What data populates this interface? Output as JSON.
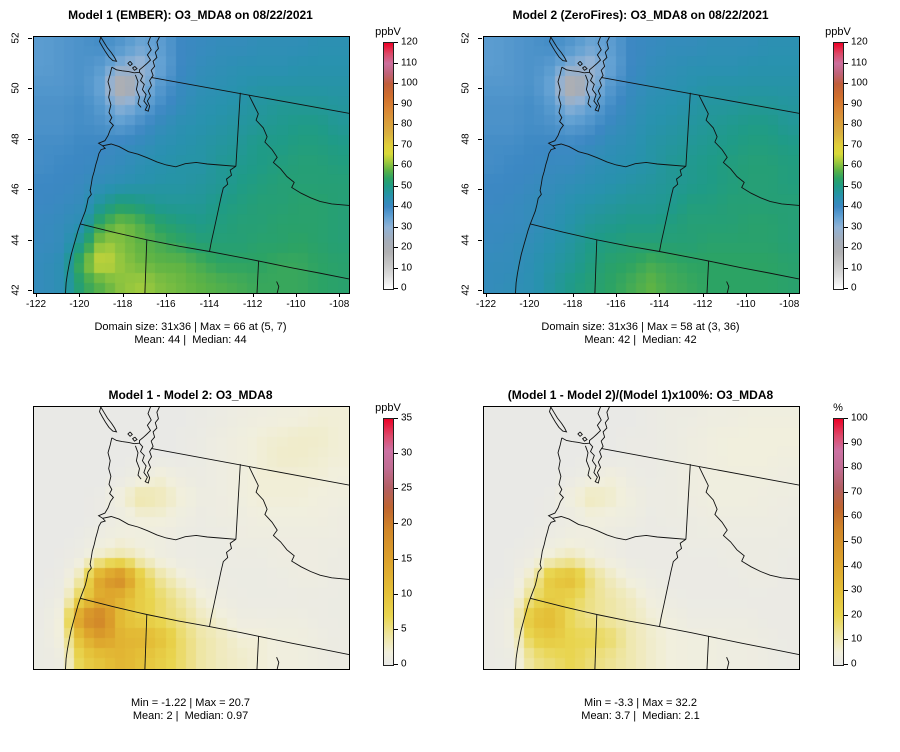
{
  "figure": {
    "background": "#ffffff",
    "pollutant": "O3_MDA8",
    "date": "08/22/2021"
  },
  "colormaps": {
    "conc": {
      "domain": "absolute",
      "stops": [
        [
          0,
          "#ffffff"
        ],
        [
          6,
          "#dfdfdf"
        ],
        [
          12,
          "#c6c6c6"
        ],
        [
          18,
          "#b0b0b2"
        ],
        [
          24,
          "#a4adba"
        ],
        [
          30,
          "#91b3d6"
        ],
        [
          35,
          "#63a1d3"
        ],
        [
          40,
          "#3c88c3"
        ],
        [
          45,
          "#2892ae"
        ],
        [
          50,
          "#1f9b87"
        ],
        [
          54,
          "#2ca364"
        ],
        [
          58,
          "#5db345"
        ],
        [
          62,
          "#a0ca3d"
        ],
        [
          66,
          "#d9d939"
        ],
        [
          70,
          "#e0cf3a"
        ],
        [
          76,
          "#d9af3f"
        ],
        [
          82,
          "#d99b3a"
        ],
        [
          88,
          "#d98434"
        ],
        [
          94,
          "#cf6e2d"
        ],
        [
          100,
          "#c05e3a"
        ],
        [
          105,
          "#c06378"
        ],
        [
          110,
          "#cc6f9d"
        ],
        [
          115,
          "#dd4766"
        ],
        [
          120,
          "#ee0026"
        ]
      ]
    },
    "diff": {
      "domain": "normalized",
      "stops": [
        [
          0,
          "#e9e9e6"
        ],
        [
          0.05,
          "#f1efdd"
        ],
        [
          0.12,
          "#eee5a0"
        ],
        [
          0.2,
          "#e9d54f"
        ],
        [
          0.3,
          "#e4bf37"
        ],
        [
          0.42,
          "#dda32c"
        ],
        [
          0.55,
          "#d18628"
        ],
        [
          0.64,
          "#bf6530"
        ],
        [
          0.72,
          "#b35f63"
        ],
        [
          0.8,
          "#c16d93"
        ],
        [
          0.87,
          "#cc72a4"
        ],
        [
          0.93,
          "#dd4a6c"
        ],
        [
          1,
          "#ec0126"
        ]
      ]
    }
  },
  "chart_data": [
    {
      "type": "heatmap",
      "title": "Model 1 (EMBER): O3_MDA8 on 08/22/2021",
      "stats_line1": "Domain size: 31x36 | Max = 66 at (5, 7)",
      "stats_line2": "Mean: 44 |  Median: 44",
      "show_axes": true,
      "x_ticks": [
        -122,
        -120,
        -118,
        -116,
        -114,
        -112,
        -110,
        -108
      ],
      "y_ticks": [
        42,
        44,
        46,
        48,
        50,
        52
      ],
      "colorbar": {
        "label": "ppbV",
        "min": 0,
        "max": 120,
        "ticks": [
          0,
          10,
          20,
          30,
          40,
          50,
          60,
          70,
          80,
          90,
          100,
          110,
          120
        ],
        "palette": "conc"
      },
      "grid": [
        [
          36,
          37,
          38,
          39,
          37,
          34,
          36,
          40,
          41,
          42,
          42,
          43,
          43,
          43,
          44,
          44
        ],
        [
          36,
          37,
          38,
          36,
          31,
          28,
          35,
          40,
          42,
          43,
          44,
          44,
          44,
          45,
          45,
          45
        ],
        [
          37,
          37,
          38,
          34,
          14,
          30,
          37,
          41,
          43,
          44,
          45,
          46,
          46,
          46,
          46,
          46
        ],
        [
          38,
          38,
          39,
          36,
          30,
          35,
          39,
          42,
          44,
          45,
          46,
          47,
          48,
          48,
          48,
          47
        ],
        [
          38,
          38,
          39,
          38,
          36,
          39,
          42,
          44,
          45,
          46,
          47,
          48,
          49,
          50,
          50,
          48
        ],
        [
          39,
          39,
          40,
          40,
          41,
          42,
          44,
          45,
          46,
          47,
          48,
          50,
          50,
          51,
          51,
          50
        ],
        [
          39,
          40,
          40,
          41,
          42,
          44,
          45,
          46,
          46,
          48,
          49,
          50,
          51,
          52,
          52,
          51
        ],
        [
          40,
          40,
          41,
          43,
          44,
          45,
          46,
          46,
          47,
          48,
          50,
          51,
          52,
          52,
          52,
          52
        ],
        [
          40,
          41,
          42,
          48,
          52,
          50,
          48,
          48,
          48,
          50,
          51,
          52,
          52,
          53,
          53,
          52
        ],
        [
          41,
          42,
          44,
          56,
          60,
          57,
          53,
          51,
          50,
          51,
          52,
          52,
          53,
          53,
          53,
          52
        ],
        [
          41,
          42,
          50,
          62,
          60,
          58,
          56,
          54,
          52,
          52,
          52,
          53,
          53,
          54,
          53,
          52
        ],
        [
          42,
          44,
          58,
          66,
          61,
          59,
          58,
          58,
          56,
          54,
          54,
          54,
          55,
          55,
          54,
          53
        ],
        [
          42,
          44,
          54,
          58,
          61,
          62,
          60,
          59,
          58,
          57,
          56,
          55,
          55,
          55,
          54,
          53
        ]
      ]
    },
    {
      "type": "heatmap",
      "title": "Model 2 (ZeroFires): O3_MDA8 on 08/22/2021",
      "stats_line1": "Domain size: 31x36 | Max = 58 at (3, 36)",
      "stats_line2": "Mean: 42 |  Median: 42",
      "show_axes": true,
      "x_ticks": [
        -122,
        -120,
        -118,
        -116,
        -114,
        -112,
        -110,
        -108
      ],
      "y_ticks": [
        42,
        44,
        46,
        48,
        50,
        52
      ],
      "colorbar": {
        "label": "ppbV",
        "min": 0,
        "max": 120,
        "ticks": [
          0,
          10,
          20,
          30,
          40,
          50,
          60,
          70,
          80,
          90,
          100,
          110,
          120
        ],
        "palette": "conc"
      },
      "grid": [
        [
          36,
          37,
          38,
          39,
          37,
          34,
          36,
          40,
          41,
          42,
          42,
          43,
          43,
          43,
          44,
          44
        ],
        [
          36,
          37,
          38,
          36,
          31,
          28,
          35,
          40,
          42,
          43,
          44,
          44,
          44,
          45,
          45,
          45
        ],
        [
          37,
          37,
          38,
          34,
          14,
          30,
          37,
          41,
          43,
          44,
          45,
          46,
          46,
          46,
          46,
          46
        ],
        [
          38,
          38,
          39,
          36,
          30,
          35,
          39,
          42,
          44,
          45,
          46,
          47,
          47,
          48,
          48,
          47
        ],
        [
          38,
          38,
          39,
          38,
          36,
          38,
          41,
          43,
          45,
          46,
          47,
          48,
          49,
          50,
          50,
          48
        ],
        [
          39,
          39,
          40,
          40,
          40,
          41,
          43,
          44,
          46,
          47,
          48,
          49,
          50,
          51,
          51,
          50
        ],
        [
          39,
          40,
          40,
          41,
          41,
          43,
          44,
          45,
          46,
          48,
          49,
          50,
          51,
          52,
          52,
          51
        ],
        [
          40,
          40,
          41,
          42,
          43,
          44,
          45,
          46,
          47,
          48,
          49,
          50,
          51,
          52,
          52,
          51
        ],
        [
          40,
          41,
          42,
          43,
          45,
          46,
          47,
          48,
          48,
          49,
          51,
          51,
          52,
          52,
          52,
          52
        ],
        [
          41,
          41,
          42,
          44,
          46,
          48,
          49,
          50,
          50,
          51,
          52,
          52,
          52,
          53,
          53,
          52
        ],
        [
          41,
          42,
          43,
          45,
          47,
          50,
          51,
          52,
          52,
          52,
          52,
          53,
          53,
          53,
          53,
          52
        ],
        [
          42,
          42,
          44,
          46,
          48,
          51,
          53,
          54,
          56,
          55,
          54,
          54,
          54,
          54,
          54,
          53
        ],
        [
          42,
          43,
          44,
          47,
          50,
          52,
          54,
          56,
          58,
          56,
          55,
          54,
          54,
          54,
          54,
          53
        ]
      ]
    },
    {
      "type": "heatmap",
      "title": "Model 1 - Model 2: O3_MDA8",
      "stats_line1": "Min = -1.22 | Max = 20.7",
      "stats_line2": "Mean: 2 |  Median: 0.97",
      "show_axes": false,
      "x_ticks": [],
      "y_ticks": [],
      "colorbar": {
        "label": "ppbV",
        "min": 0,
        "max": 35,
        "ticks": [
          0,
          5,
          10,
          15,
          20,
          25,
          30,
          35
        ],
        "palette": "diff"
      },
      "grid": [
        [
          0,
          0,
          0,
          0,
          0,
          0,
          0,
          0,
          0.3,
          0.6,
          1,
          1.2,
          1.5,
          1.6,
          2,
          2
        ],
        [
          0,
          0,
          0,
          0,
          0,
          0,
          0,
          0.2,
          0.5,
          1,
          1.5,
          2,
          2.2,
          2.5,
          2.5,
          2
        ],
        [
          0,
          0,
          0,
          0,
          0,
          0,
          0,
          0.2,
          0.5,
          1,
          1.5,
          2,
          2.5,
          2.5,
          2.2,
          2
        ],
        [
          0,
          0,
          0,
          0,
          0.3,
          1.2,
          2,
          1,
          0.6,
          1,
          1.5,
          2,
          2,
          2,
          2,
          1.6
        ],
        [
          0,
          0,
          0,
          0.4,
          2,
          4,
          3.2,
          2,
          1,
          1,
          1.5,
          2,
          2,
          2,
          1.6,
          1.5
        ],
        [
          0,
          0,
          0,
          0.4,
          1,
          2,
          2,
          1.2,
          0.6,
          1,
          1,
          1.5,
          1.5,
          1.5,
          1.5,
          1
        ],
        [
          0,
          0,
          0.4,
          1,
          1.6,
          1.2,
          1,
          0.6,
          0.5,
          0.5,
          1,
          1,
          1,
          1,
          1,
          1
        ],
        [
          0,
          0.2,
          1,
          3,
          4,
          2.5,
          1.2,
          0.6,
          0.5,
          0.5,
          0.6,
          0.6,
          1,
          1,
          1,
          0.6
        ],
        [
          0,
          0.5,
          4,
          16,
          19,
          8,
          4,
          2,
          1,
          0.6,
          0.5,
          0.5,
          0.6,
          1,
          1,
          0.6
        ],
        [
          0.2,
          1,
          8,
          14,
          12,
          8,
          6,
          4,
          2,
          1,
          0.6,
          0.5,
          0.5,
          0.6,
          0.6,
          0.5
        ],
        [
          0.4,
          2,
          18,
          20,
          10,
          8,
          6,
          5,
          3,
          2,
          1,
          1,
          1,
          1,
          0.6,
          0.5
        ],
        [
          0.5,
          2,
          12,
          16,
          12,
          12,
          10,
          6,
          4,
          3,
          2,
          2,
          1.5,
          1.5,
          1,
          0.6
        ],
        [
          0.5,
          1,
          8,
          10,
          12,
          10,
          8,
          6,
          4,
          3,
          2.5,
          2,
          1.5,
          1.5,
          1,
          0.6
        ]
      ]
    },
    {
      "type": "heatmap",
      "title": "(Model 1 - Model 2)/(Model 1)x100%: O3_MDA8",
      "stats_line1": "Min = -3.3 | Max = 32.2",
      "stats_line2": "Mean: 3.7 |  Median: 2.1",
      "show_axes": false,
      "x_ticks": [],
      "y_ticks": [],
      "colorbar": {
        "label": "%",
        "min": 0,
        "max": 100,
        "ticks": [
          0,
          10,
          20,
          30,
          40,
          50,
          60,
          70,
          80,
          90,
          100
        ],
        "palette": "diff"
      },
      "grid": [
        [
          0,
          0,
          0,
          0,
          0,
          0,
          0,
          0,
          1,
          2,
          2,
          3,
          3,
          4,
          4,
          4
        ],
        [
          0,
          0,
          0,
          0,
          0,
          0,
          0,
          1,
          1,
          2,
          3,
          4,
          5,
          5,
          5,
          5
        ],
        [
          0,
          0,
          0,
          0,
          0,
          0,
          0,
          1,
          1,
          2,
          3,
          4,
          5,
          5,
          5,
          4
        ],
        [
          0,
          0,
          0,
          0,
          1,
          3,
          5,
          2,
          1,
          2,
          3,
          4,
          4,
          4,
          4,
          3
        ],
        [
          0,
          0,
          0,
          1,
          5,
          9,
          7,
          4,
          2,
          2,
          3,
          4,
          4,
          4,
          3,
          3
        ],
        [
          0,
          0,
          0,
          1,
          2,
          5,
          4,
          3,
          1,
          2,
          2,
          3,
          3,
          3,
          3,
          2
        ],
        [
          0,
          0,
          1,
          2,
          4,
          3,
          2,
          1,
          1,
          1,
          2,
          2,
          2,
          2,
          2,
          2
        ],
        [
          0,
          1,
          2,
          7,
          9,
          5,
          3,
          1,
          1,
          1,
          1,
          1,
          2,
          2,
          2,
          1
        ],
        [
          0,
          1,
          9,
          27,
          31,
          15,
          8,
          4,
          2,
          1,
          1,
          1,
          1,
          2,
          2,
          1
        ],
        [
          1,
          2,
          16,
          24,
          20,
          14,
          11,
          8,
          4,
          2,
          1,
          1,
          1,
          1,
          1,
          1
        ],
        [
          1,
          4,
          30,
          32,
          17,
          14,
          11,
          9,
          6,
          4,
          2,
          2,
          2,
          2,
          1,
          1
        ],
        [
          1,
          4,
          22,
          26,
          20,
          20,
          17,
          10,
          7,
          5,
          4,
          4,
          3,
          3,
          2,
          1
        ],
        [
          1,
          2,
          14,
          17,
          20,
          16,
          13,
          10,
          7,
          5,
          4,
          4,
          3,
          3,
          2,
          1
        ]
      ]
    }
  ]
}
